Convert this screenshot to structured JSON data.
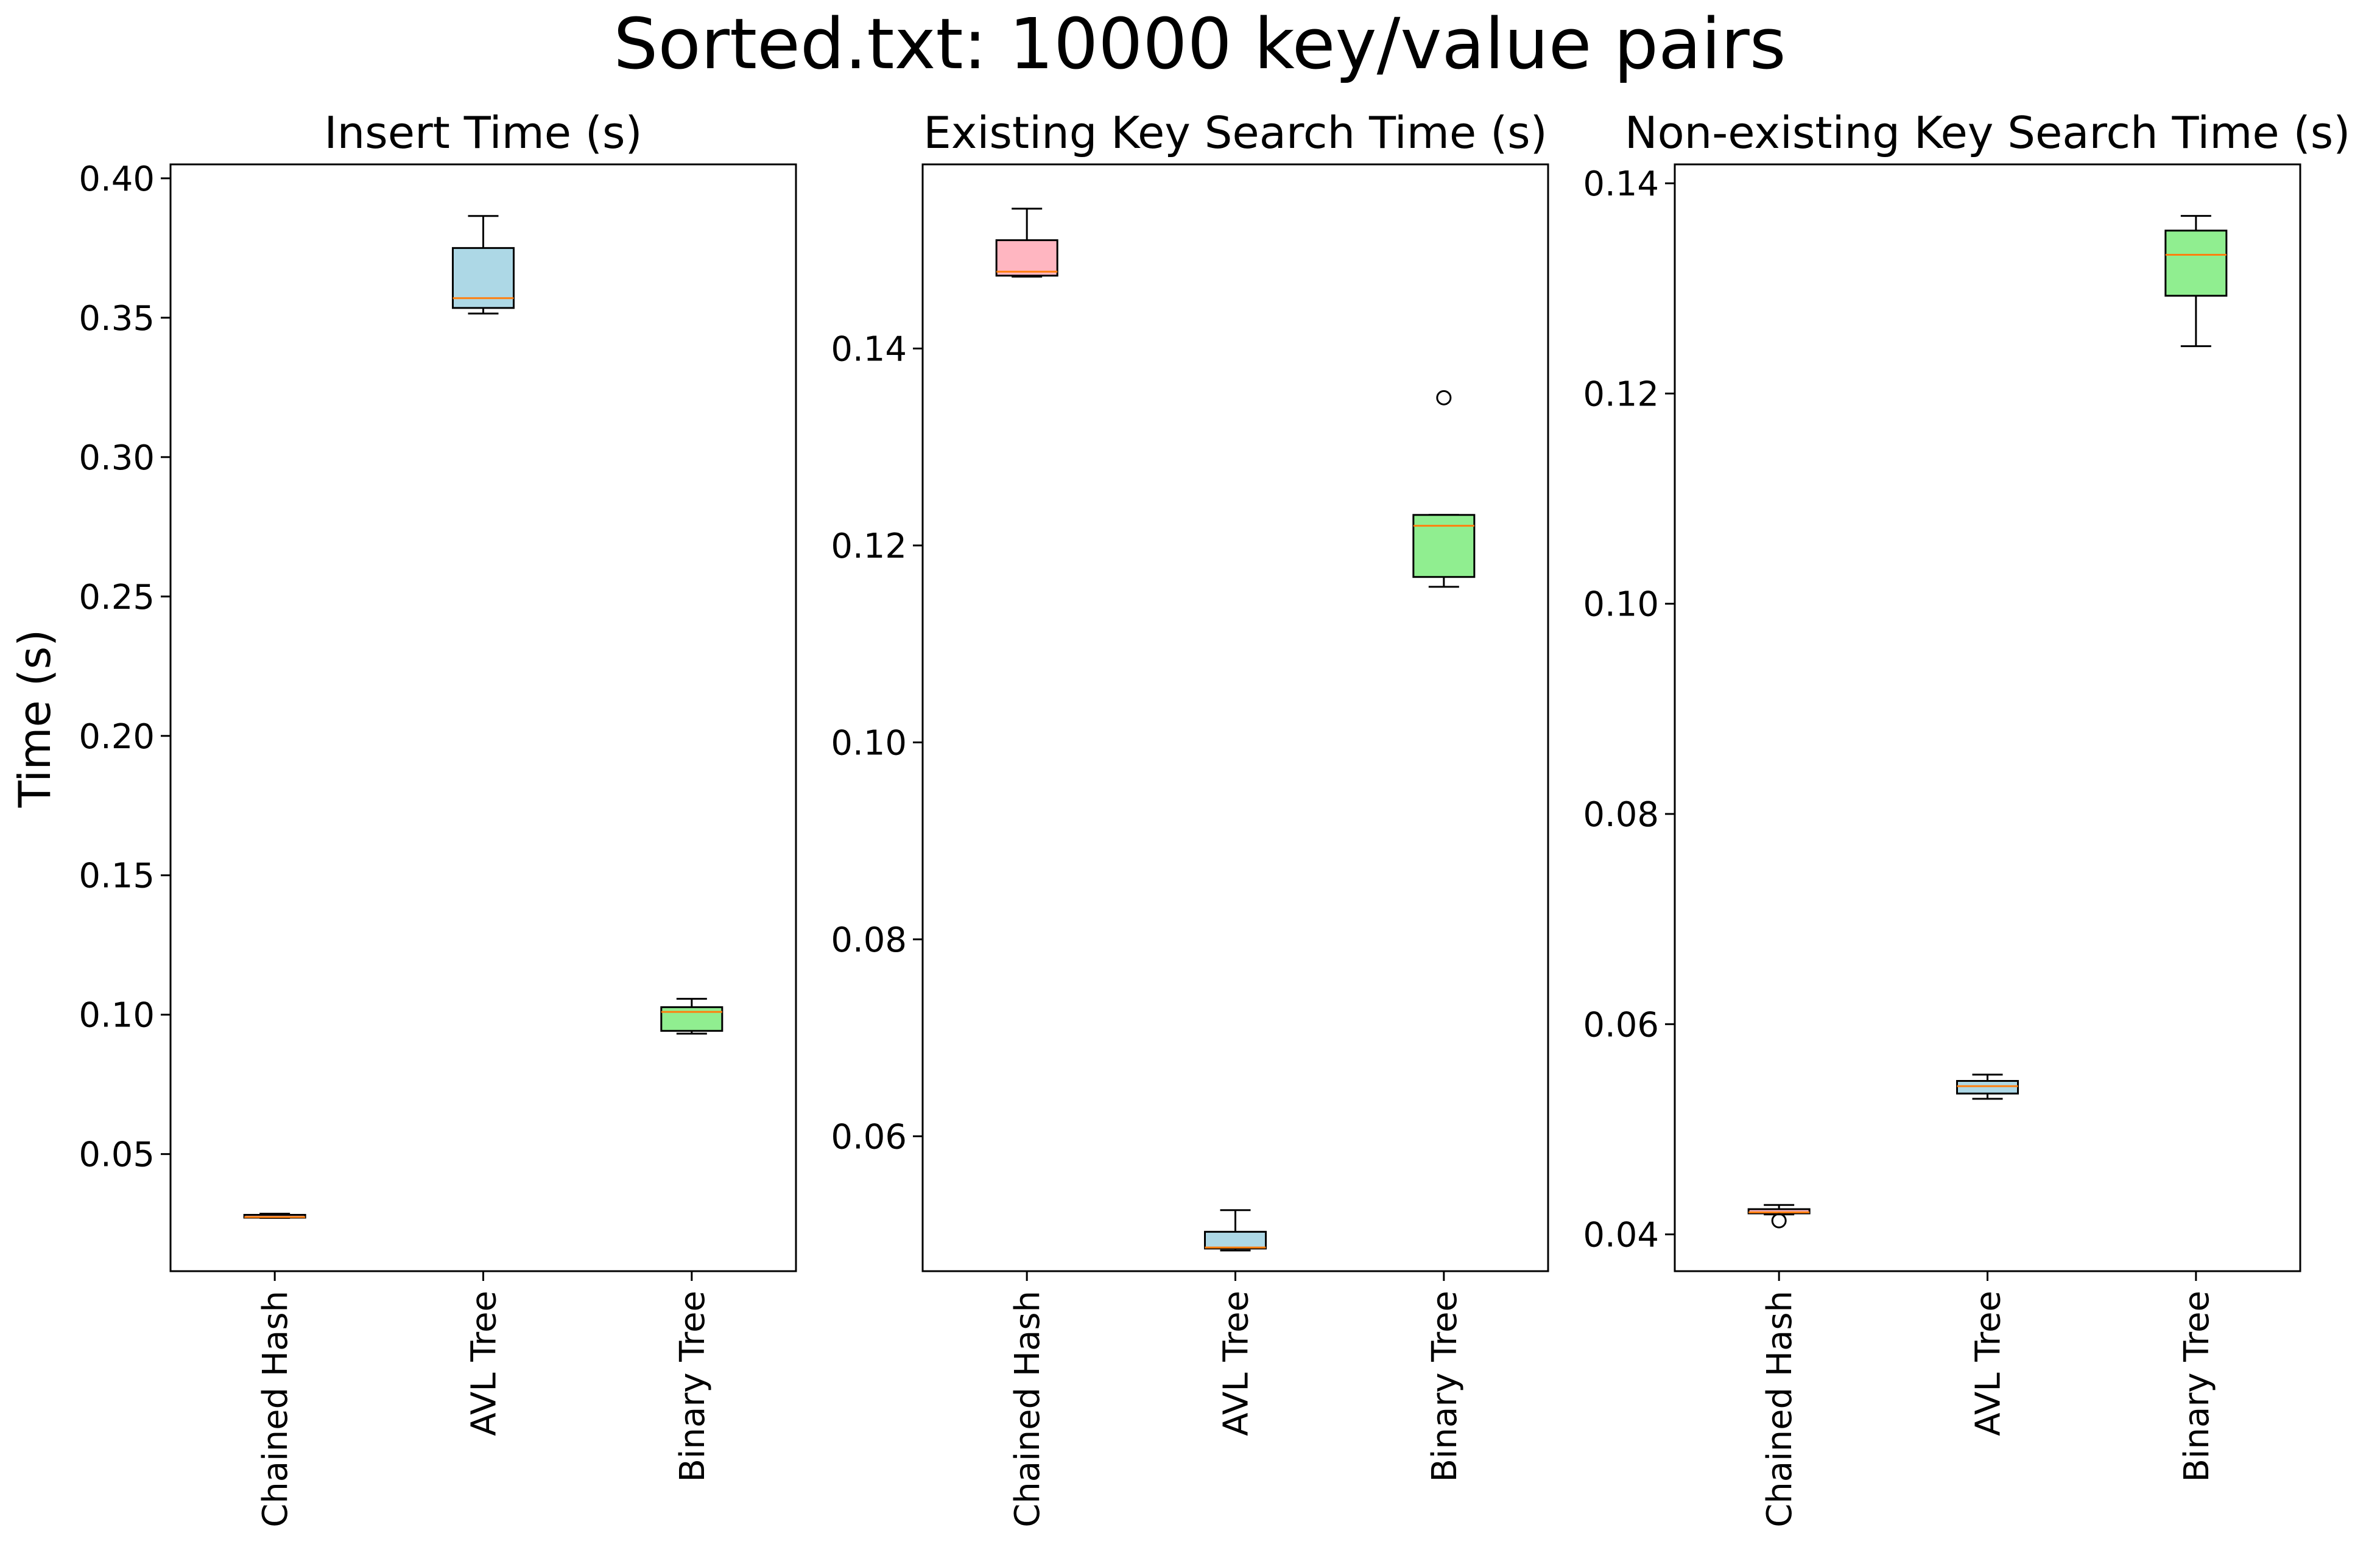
{
  "figure": {
    "title": "Sorted.txt: 10000 key/value pairs",
    "ylabel": "Time (s)"
  },
  "style": {
    "median_color": "#ff7f0e",
    "box_colors": [
      "#ffb6c1",
      "#add8e6",
      "#90ee90"
    ],
    "line_color": "#000000"
  },
  "chart_data": [
    {
      "type": "box",
      "title": "Insert Time (s)",
      "categories": [
        "Chained Hash",
        "AVL Tree",
        "Binary Tree"
      ],
      "ylim": [
        0.008,
        0.405
      ],
      "yticks": [
        0.05,
        0.1,
        0.15,
        0.2,
        0.25,
        0.3,
        0.35,
        0.4
      ],
      "ytick_labels": [
        "0.05",
        "0.10",
        "0.15",
        "0.20",
        "0.25",
        "0.30",
        "0.35",
        "0.40"
      ],
      "boxes": [
        {
          "whislo": 0.0271,
          "q1": 0.0272,
          "med": 0.0274,
          "q3": 0.0282,
          "whishi": 0.0286,
          "fliers": []
        },
        {
          "whislo": 0.3515,
          "q1": 0.3535,
          "med": 0.357,
          "q3": 0.375,
          "whishi": 0.3865,
          "fliers": []
        },
        {
          "whislo": 0.0932,
          "q1": 0.0942,
          "med": 0.101,
          "q3": 0.1027,
          "whishi": 0.1057,
          "fliers": []
        }
      ]
    },
    {
      "type": "box",
      "title": "Existing Key Search Time (s)",
      "categories": [
        "Chained Hash",
        "AVL Tree",
        "Binary Tree"
      ],
      "ylim": [
        0.0463,
        0.1587
      ],
      "yticks": [
        0.06,
        0.08,
        0.1,
        0.12,
        0.14
      ],
      "ytick_labels": [
        "0.06",
        "0.08",
        "0.10",
        "0.12",
        "0.14"
      ],
      "boxes": [
        {
          "whislo": 0.1473,
          "q1": 0.1474,
          "med": 0.1478,
          "q3": 0.151,
          "whishi": 0.1542,
          "fliers": []
        },
        {
          "whislo": 0.0484,
          "q1": 0.0486,
          "med": 0.0487,
          "q3": 0.0503,
          "whishi": 0.0525,
          "fliers": []
        },
        {
          "whislo": 0.1158,
          "q1": 0.1168,
          "med": 0.122,
          "q3": 0.1231,
          "whishi": 0.1231,
          "fliers": [
            0.135
          ]
        }
      ]
    },
    {
      "type": "box",
      "title": "Non-existing Key Search Time (s)",
      "categories": [
        "Chained Hash",
        "AVL Tree",
        "Binary Tree"
      ],
      "ylim": [
        0.0365,
        0.1418
      ],
      "yticks": [
        0.04,
        0.06,
        0.08,
        0.1,
        0.12,
        0.14
      ],
      "ytick_labels": [
        "0.04",
        "0.06",
        "0.08",
        "0.10",
        "0.12",
        "0.14"
      ],
      "boxes": [
        {
          "whislo": 0.0419,
          "q1": 0.042,
          "med": 0.0421,
          "q3": 0.0424,
          "whishi": 0.0428,
          "fliers": [
            0.0413
          ]
        },
        {
          "whislo": 0.0529,
          "q1": 0.0534,
          "med": 0.0541,
          "q3": 0.0546,
          "whishi": 0.0552,
          "fliers": []
        },
        {
          "whislo": 0.1245,
          "q1": 0.1293,
          "med": 0.1332,
          "q3": 0.1355,
          "whishi": 0.1369,
          "fliers": []
        }
      ]
    }
  ]
}
